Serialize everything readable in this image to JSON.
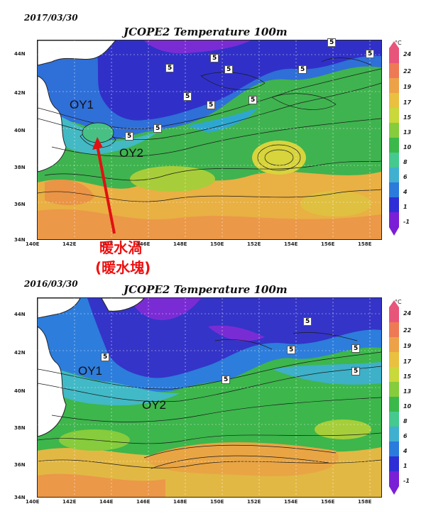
{
  "colors": {
    "red_annotation": "#e11111",
    "colorbar": [
      "#7a1fd6",
      "#2e2ed6",
      "#2b7bdc",
      "#3fb0d0",
      "#45c98f",
      "#3bb84a",
      "#86cc3c",
      "#c9d83a",
      "#e9c040",
      "#eda248",
      "#ee7a55",
      "#e8557a"
    ]
  },
  "top": {
    "date": "2017/03/30",
    "title": "JCOPE2 Temperature 100m",
    "labels": {
      "oy1": "OY1",
      "oy2": "OY2"
    },
    "annotation_line1": "暖水渦",
    "annotation_line2": "(暖水塊)",
    "five": "5"
  },
  "bottom": {
    "date": "2016/03/30",
    "title": "JCOPE2 Temperature 100m",
    "labels": {
      "oy1": "OY1",
      "oy2": "OY2"
    },
    "five": "5"
  },
  "lat_ticks": [
    "44N",
    "42N",
    "40N",
    "38N",
    "36N",
    "34N"
  ],
  "lon_ticks": [
    "140E",
    "142E",
    "144E",
    "146E",
    "148E",
    "150E",
    "152E",
    "154E",
    "156E",
    "158E"
  ],
  "colorbar": {
    "unit": "°C",
    "ticks": [
      "24",
      "22",
      "19",
      "17",
      "15",
      "13",
      "10",
      "8",
      "6",
      "4",
      "1",
      "-1"
    ]
  }
}
